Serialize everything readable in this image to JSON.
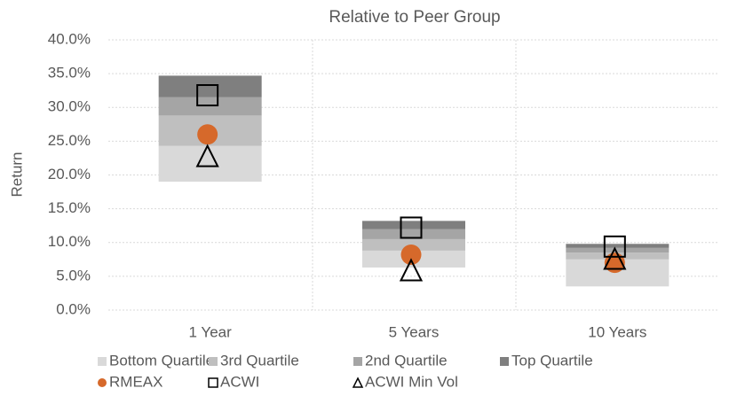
{
  "chart_data": {
    "type": "bar",
    "title": "Relative to Peer Group",
    "y_label": "Return",
    "categories": [
      "1 Year",
      "5 Years",
      "10 Years"
    ],
    "bar_bottom": [
      19.0,
      6.3,
      3.5
    ],
    "series": [
      {
        "name": "Bottom Quartile",
        "type": "bar",
        "color": "#d9d9d9",
        "values": [
          5.3,
          2.5,
          4.0
        ]
      },
      {
        "name": "3rd Quartile",
        "type": "bar",
        "color": "#bfbfbf",
        "values": [
          4.5,
          1.7,
          1.0
        ]
      },
      {
        "name": "2nd Quartile",
        "type": "bar",
        "color": "#a5a5a5",
        "values": [
          2.7,
          1.5,
          0.7
        ]
      },
      {
        "name": "Top Quartile",
        "type": "bar",
        "color": "#7f7f7f",
        "values": [
          3.2,
          1.2,
          0.6
        ]
      },
      {
        "name": "RMEAX",
        "type": "scatter",
        "marker": "circle",
        "color": "#d6692b",
        "values": [
          26.0,
          8.2,
          7.0
        ]
      },
      {
        "name": "ACWI",
        "type": "scatter",
        "marker": "square",
        "color": "#000000",
        "values": [
          31.8,
          12.2,
          9.4
        ]
      },
      {
        "name": "ACWI Min Vol",
        "type": "scatter",
        "marker": "triangle",
        "color": "#000000",
        "values": [
          22.8,
          5.9,
          7.6
        ]
      }
    ],
    "ylim": [
      0,
      40
    ],
    "yticks": [
      {
        "value": 0,
        "label": "0.0%"
      },
      {
        "value": 5,
        "label": "5.0%"
      },
      {
        "value": 10,
        "label": "10.0%"
      },
      {
        "value": 15,
        "label": "15.0%"
      },
      {
        "value": 20,
        "label": "20.0%"
      },
      {
        "value": 25,
        "label": "25.0%"
      },
      {
        "value": 30,
        "label": "30.0%"
      },
      {
        "value": 35,
        "label": "35.0%"
      },
      {
        "value": 40,
        "label": "40.0%"
      }
    ],
    "grid": true,
    "legend": "bottom"
  }
}
